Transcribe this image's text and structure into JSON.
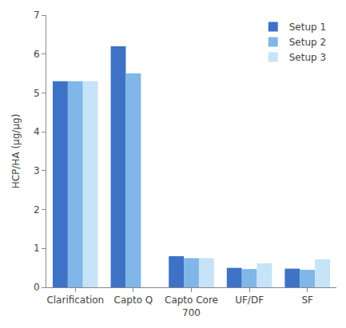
{
  "chart_data": {
    "type": "bar",
    "y_label": "HCP/HA (µg/µg)",
    "categories": [
      "Clarification",
      "Capto Q",
      "Capto Core 700",
      "UF/DF",
      "SF"
    ],
    "series": [
      {
        "name": "Setup 1",
        "color": "#3d72c6",
        "values": [
          5.3,
          6.2,
          0.8,
          0.5,
          0.48
        ]
      },
      {
        "name": "Setup 2",
        "color": "#80b6e8",
        "values": [
          5.3,
          5.5,
          0.75,
          0.47,
          0.45
        ]
      },
      {
        "name": "Setup 3",
        "color": "#c6e3f7",
        "values": [
          5.3,
          null,
          0.75,
          0.62,
          0.72
        ]
      }
    ],
    "ylim": [
      0,
      7
    ],
    "yticks": [
      0,
      1,
      2,
      3,
      4,
      5,
      6,
      7
    ],
    "grid": false,
    "legend": "top right"
  }
}
